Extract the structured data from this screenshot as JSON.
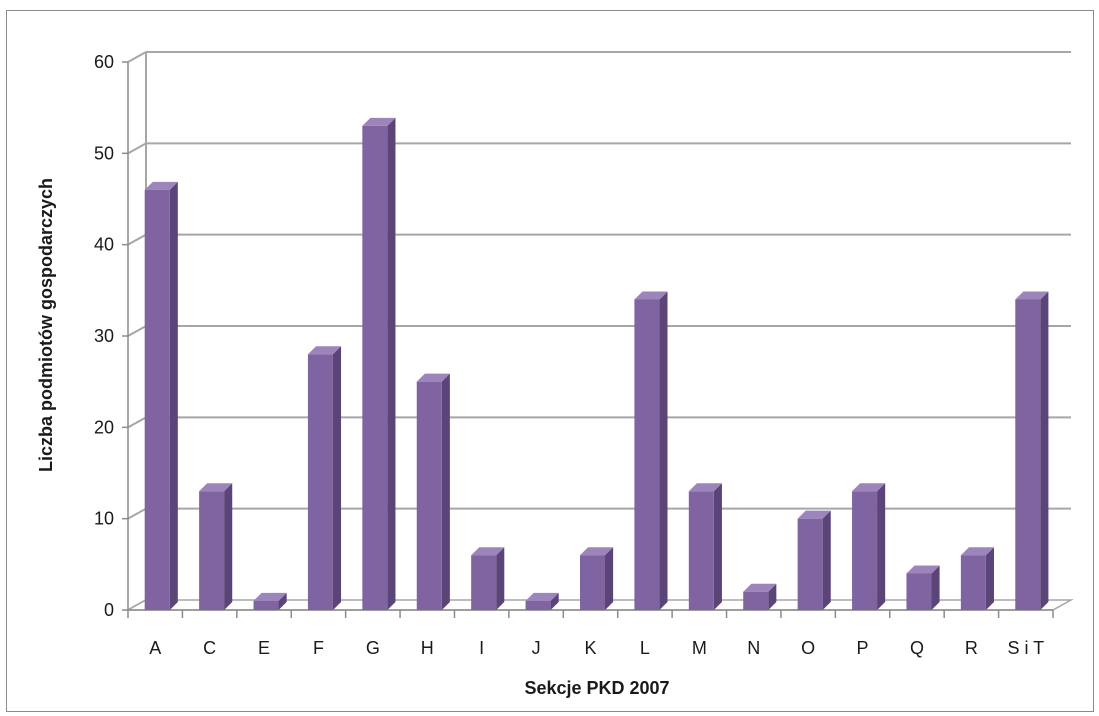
{
  "chart_data": {
    "type": "bar",
    "categories": [
      "A",
      "C",
      "E",
      "F",
      "G",
      "H",
      "I",
      "J",
      "K",
      "L",
      "M",
      "N",
      "O",
      "P",
      "Q",
      "R",
      "S i T"
    ],
    "values": [
      46,
      13,
      1,
      28,
      53,
      25,
      6,
      1,
      6,
      34,
      13,
      2,
      10,
      13,
      4,
      6,
      34
    ],
    "title": "",
    "xlabel": "Sekcje PKD 2007",
    "ylabel": "Liczba podmiotów gospodarczych",
    "ylim": [
      0,
      60
    ],
    "yticks": [
      "0",
      "10",
      "20",
      "30",
      "40",
      "50",
      "60"
    ],
    "grid": true,
    "legend": "none",
    "colors": {
      "bar_front": "#8064a2",
      "bar_side": "#5a4478",
      "bar_top": "#9c85bb",
      "gridline": "#a6a6a6",
      "axis": "#8c8c8c"
    }
  }
}
